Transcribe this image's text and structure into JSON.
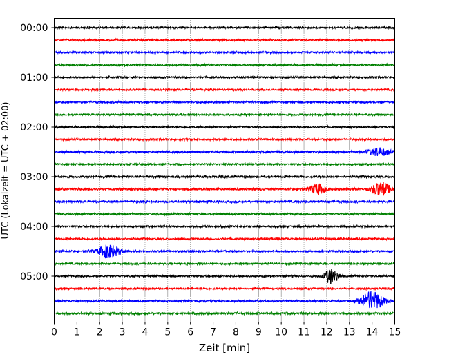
{
  "chart_data": {
    "type": "line",
    "title": "",
    "xlabel": "Zeit  [min]",
    "ylabel": "UTC (Lokalzeit = UTC + 02:00)",
    "xlim": [
      0,
      15
    ],
    "x_ticks": [
      "0",
      "1",
      "2",
      "3",
      "4",
      "5",
      "6",
      "7",
      "8",
      "9",
      "10",
      "11",
      "12",
      "13",
      "14",
      "15"
    ],
    "y_ticks": [
      "00:00",
      "01:00",
      "02:00",
      "03:00",
      "04:00",
      "05:00"
    ],
    "grid": "vertical dotted lines at each minute",
    "colors": [
      "#000000",
      "#ff0000",
      "#0000ff",
      "#008000"
    ],
    "trace_interval_minutes": 15,
    "traces": [
      {
        "start": "00:00",
        "color": "#000000",
        "noise": 0.6,
        "events": []
      },
      {
        "start": "00:15",
        "color": "#ff0000",
        "noise": 0.6,
        "events": []
      },
      {
        "start": "00:30",
        "color": "#0000ff",
        "noise": 0.6,
        "events": []
      },
      {
        "start": "00:45",
        "color": "#008000",
        "noise": 0.6,
        "events": []
      },
      {
        "start": "01:00",
        "color": "#000000",
        "noise": 0.6,
        "events": []
      },
      {
        "start": "01:15",
        "color": "#ff0000",
        "noise": 0.6,
        "events": []
      },
      {
        "start": "01:30",
        "color": "#0000ff",
        "noise": 0.6,
        "events": []
      },
      {
        "start": "01:45",
        "color": "#008000",
        "noise": 0.6,
        "events": []
      },
      {
        "start": "02:00",
        "color": "#000000",
        "noise": 0.6,
        "events": []
      },
      {
        "start": "02:15",
        "color": "#ff0000",
        "noise": 0.6,
        "events": []
      },
      {
        "start": "02:30",
        "color": "#0000ff",
        "noise": 0.7,
        "events": [
          {
            "t": 14.3,
            "amp": 0.6,
            "width": 0.45
          }
        ]
      },
      {
        "start": "02:45",
        "color": "#008000",
        "noise": 0.6,
        "events": []
      },
      {
        "start": "03:00",
        "color": "#000000",
        "noise": 0.7,
        "events": []
      },
      {
        "start": "03:15",
        "color": "#ff0000",
        "noise": 0.7,
        "events": [
          {
            "t": 11.6,
            "amp": 0.8,
            "width": 0.35
          },
          {
            "t": 14.4,
            "amp": 1.1,
            "width": 0.4
          }
        ]
      },
      {
        "start": "03:30",
        "color": "#0000ff",
        "noise": 0.7,
        "events": []
      },
      {
        "start": "03:45",
        "color": "#008000",
        "noise": 0.6,
        "events": []
      },
      {
        "start": "04:00",
        "color": "#000000",
        "noise": 0.6,
        "events": []
      },
      {
        "start": "04:15",
        "color": "#ff0000",
        "noise": 0.6,
        "events": []
      },
      {
        "start": "04:30",
        "color": "#0000ff",
        "noise": 0.6,
        "events": [
          {
            "t": 2.4,
            "amp": 1.0,
            "width": 0.5
          }
        ]
      },
      {
        "start": "04:45",
        "color": "#008000",
        "noise": 0.6,
        "events": []
      },
      {
        "start": "05:00",
        "color": "#000000",
        "noise": 0.6,
        "events": [
          {
            "t": 12.2,
            "amp": 1.2,
            "width": 0.3
          }
        ]
      },
      {
        "start": "05:15",
        "color": "#ff0000",
        "noise": 0.6,
        "events": []
      },
      {
        "start": "05:30",
        "color": "#0000ff",
        "noise": 0.6,
        "events": [
          {
            "t": 14.0,
            "amp": 1.5,
            "width": 0.5
          }
        ]
      },
      {
        "start": "05:45",
        "color": "#008000",
        "noise": 0.7,
        "events": []
      }
    ]
  }
}
